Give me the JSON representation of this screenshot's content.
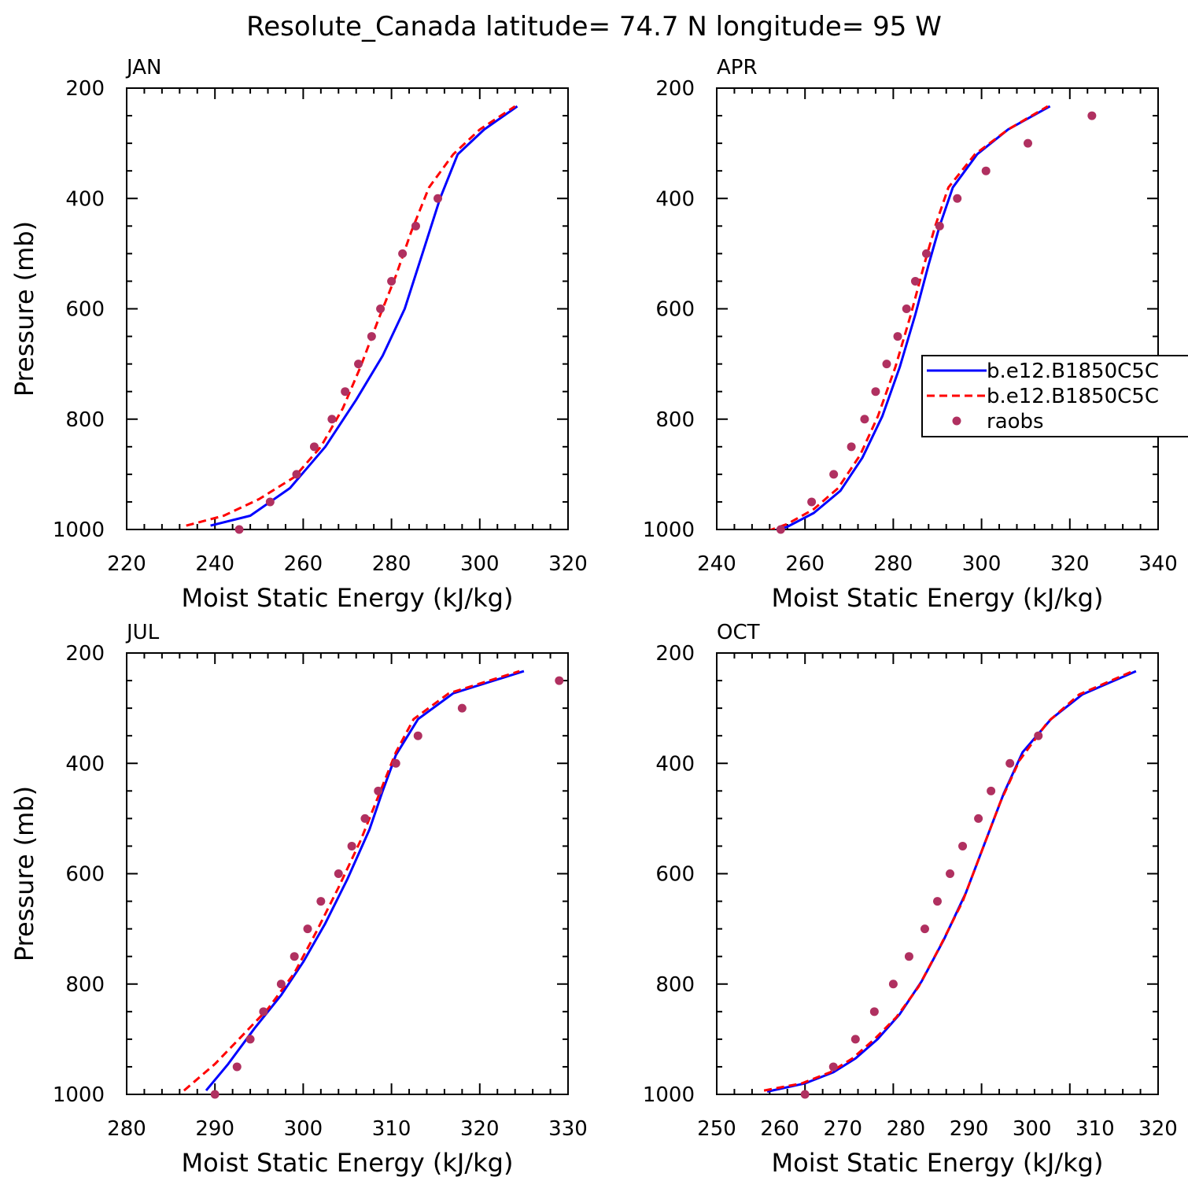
{
  "figure_title": "Resolute_Canada  latitude= 74.7 N longitude= 95 W",
  "colors": {
    "model1": "#0000ff",
    "model2": "#ff0000",
    "raobs": "#b03060"
  },
  "legend": {
    "panel": "APR",
    "entries": [
      {
        "label": "b.e12.B1850C5C",
        "series": "model1"
      },
      {
        "label": "b.e12.B1850C5C",
        "series": "model2"
      },
      {
        "label": "raobs",
        "series": "raobs"
      }
    ]
  },
  "chart_data": [
    {
      "type": "line",
      "title": "JAN",
      "xlabel": "Moist Static Energy (kJ/kg)",
      "ylabel": "Pressure (mb)",
      "xlim": [
        220,
        320
      ],
      "ylim": [
        200,
        1000
      ],
      "xticks": [
        220,
        240,
        260,
        280,
        300,
        320
      ],
      "yticks": [
        200,
        400,
        600,
        800,
        1000
      ],
      "series": [
        {
          "name": "b.e12.B1850C5C",
          "key": "model1",
          "style": "solid",
          "x": [
            239,
            248,
            257,
            265,
            272,
            278,
            283,
            287,
            291,
            295,
            301,
            308.5
          ],
          "y": [
            993,
            975,
            925,
            850,
            765,
            685,
            600,
            500,
            400,
            320,
            275,
            233
          ]
        },
        {
          "name": "b.e12.B1850C5C",
          "key": "model2",
          "style": "dashed",
          "x": [
            233.5,
            242,
            250,
            258,
            264,
            269,
            273,
            277,
            281,
            284.5,
            288.5,
            294,
            300,
            308
          ],
          "y": [
            993,
            975,
            945,
            905,
            850,
            780,
            705,
            620,
            540,
            460,
            380,
            320,
            275,
            233
          ]
        },
        {
          "name": "raobs",
          "key": "raobs",
          "style": "dots",
          "x": [
            245.5,
            252.5,
            258.5,
            262.5,
            266.5,
            269.5,
            272.5,
            275.5,
            277.5,
            280,
            282.5,
            285.5,
            290.5
          ],
          "y": [
            1000,
            950,
            900,
            850,
            800,
            750,
            700,
            650,
            600,
            550,
            500,
            450,
            400
          ]
        }
      ]
    },
    {
      "type": "line",
      "title": "APR",
      "xlabel": "Moist Static Energy (kJ/kg)",
      "ylabel": "",
      "xlim": [
        240,
        340
      ],
      "ylim": [
        200,
        1000
      ],
      "xticks": [
        240,
        260,
        280,
        300,
        320,
        340
      ],
      "yticks": [
        200,
        400,
        600,
        800,
        1000
      ],
      "series": [
        {
          "name": "b.e12.B1850C5C",
          "key": "model1",
          "style": "solid",
          "x": [
            252,
            256,
            262,
            268,
            273,
            277.5,
            281.5,
            285,
            288,
            290.5,
            293.5,
            299,
            306,
            315.5
          ],
          "y": [
            1005,
            995,
            970,
            930,
            870,
            795,
            705,
            610,
            520,
            450,
            380,
            320,
            275,
            233
          ]
        },
        {
          "name": "b.e12.B1850C5C",
          "key": "model2",
          "style": "dashed",
          "x": [
            251.5,
            256,
            262,
            267.5,
            272.5,
            276.5,
            280.5,
            284,
            287,
            289.5,
            292.5,
            298.5,
            306,
            315
          ],
          "y": [
            1003,
            990,
            963,
            925,
            865,
            795,
            705,
            610,
            520,
            450,
            380,
            320,
            275,
            233
          ]
        },
        {
          "name": "raobs",
          "key": "raobs",
          "style": "dots",
          "x": [
            254.5,
            261.5,
            266.5,
            270.5,
            273.5,
            276,
            278.5,
            281,
            283,
            285,
            287.5,
            290.5,
            294.5,
            301,
            310.5,
            325
          ],
          "y": [
            1000,
            950,
            900,
            850,
            800,
            750,
            700,
            650,
            600,
            550,
            500,
            450,
            400,
            350,
            300,
            250
          ]
        }
      ]
    },
    {
      "type": "line",
      "title": "JUL",
      "xlabel": "Moist Static Energy (kJ/kg)",
      "ylabel": "Pressure (mb)",
      "xlim": [
        280,
        330
      ],
      "ylim": [
        200,
        1000
      ],
      "xticks": [
        280,
        290,
        300,
        310,
        320,
        330
      ],
      "yticks": [
        200,
        400,
        600,
        800,
        1000
      ],
      "series": [
        {
          "name": "b.e12.B1850C5C",
          "key": "model1",
          "style": "solid",
          "x": [
            289,
            291.5,
            294.5,
            297.5,
            300,
            302.5,
            305,
            307.5,
            309,
            310.5,
            313,
            317,
            325
          ],
          "y": [
            993,
            945,
            880,
            820,
            760,
            690,
            610,
            520,
            450,
            385,
            320,
            273,
            233
          ]
        },
        {
          "name": "b.e12.B1850C5C",
          "key": "model2",
          "style": "dashed",
          "x": [
            286.5,
            290,
            293,
            296,
            299,
            301.5,
            304,
            306.5,
            308.5,
            310.5,
            312.5,
            316.5,
            324.5
          ],
          "y": [
            993,
            945,
            895,
            845,
            780,
            705,
            625,
            540,
            460,
            380,
            320,
            273,
            233
          ]
        },
        {
          "name": "raobs",
          "key": "raobs",
          "style": "dots",
          "x": [
            290,
            292.5,
            294,
            295.5,
            297.5,
            299,
            300.5,
            302,
            304,
            305.5,
            307,
            308.5,
            310.5,
            313,
            318,
            329
          ],
          "y": [
            1000,
            950,
            900,
            850,
            800,
            750,
            700,
            650,
            600,
            550,
            500,
            450,
            400,
            350,
            300,
            250
          ]
        }
      ]
    },
    {
      "type": "line",
      "title": "OCT",
      "xlabel": "Moist Static Energy (kJ/kg)",
      "ylabel": "",
      "xlim": [
        250,
        320
      ],
      "ylim": [
        200,
        1000
      ],
      "xticks": [
        250,
        260,
        270,
        280,
        290,
        300,
        310,
        320
      ],
      "yticks": [
        200,
        400,
        600,
        800,
        1000
      ],
      "series": [
        {
          "name": "b.e12.B1850C5C",
          "key": "model1",
          "style": "solid",
          "x": [
            258,
            264,
            268.5,
            272,
            275.5,
            279,
            282.5,
            286,
            289.5,
            292.5,
            295.5,
            298.5,
            303,
            308,
            316.5
          ],
          "y": [
            995,
            980,
            960,
            935,
            900,
            855,
            795,
            720,
            635,
            545,
            455,
            380,
            320,
            275,
            233
          ]
        },
        {
          "name": "b.e12.B1850C5C",
          "key": "model2",
          "style": "dashed",
          "x": [
            257.5,
            263.5,
            268,
            271.5,
            275,
            278.5,
            282,
            285.5,
            289,
            292,
            295,
            298,
            302.5,
            307.5,
            316
          ],
          "y": [
            993,
            980,
            960,
            935,
            900,
            860,
            805,
            730,
            650,
            560,
            470,
            395,
            325,
            275,
            233
          ]
        },
        {
          "name": "raobs",
          "key": "raobs",
          "style": "dots",
          "x": [
            264,
            268.5,
            272,
            275,
            278,
            280.5,
            283,
            285,
            287,
            289,
            291.5,
            293.5,
            296.5,
            301
          ],
          "y": [
            1000,
            950,
            900,
            850,
            800,
            750,
            700,
            650,
            600,
            550,
            500,
            450,
            400,
            350
          ]
        }
      ]
    }
  ]
}
